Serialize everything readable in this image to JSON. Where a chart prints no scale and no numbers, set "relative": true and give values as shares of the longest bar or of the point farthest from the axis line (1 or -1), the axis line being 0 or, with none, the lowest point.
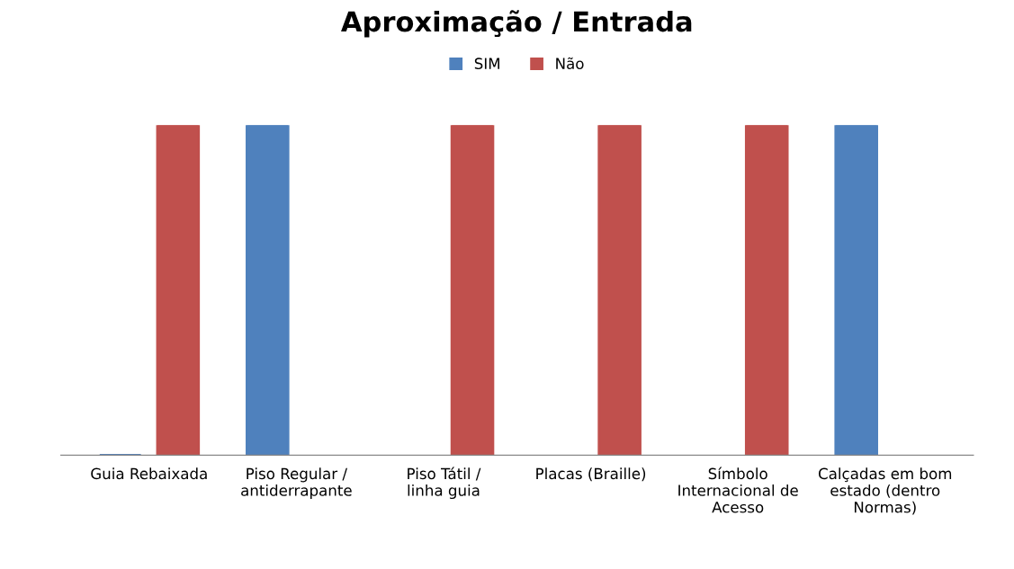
{
  "chart_data": {
    "type": "bar",
    "title": "Aproximação / Entrada",
    "relative": true,
    "legend": "top",
    "grid": false,
    "categories": [
      "Guia Rebaixada",
      "Piso Regular / antiderrapante",
      "Piso Tátil / linha guia",
      "Placas (Braille)",
      "Símbolo Internacional de Acesso",
      "Calçadas em bom estado (dentro Normas)"
    ],
    "series": [
      {
        "name": "SIM",
        "color": "#4f81bd",
        "values": [
          0,
          1,
          null,
          null,
          null,
          1
        ]
      },
      {
        "name": "Não",
        "color": "#c0504d",
        "values": [
          1,
          null,
          1,
          1,
          1,
          null
        ]
      }
    ]
  }
}
